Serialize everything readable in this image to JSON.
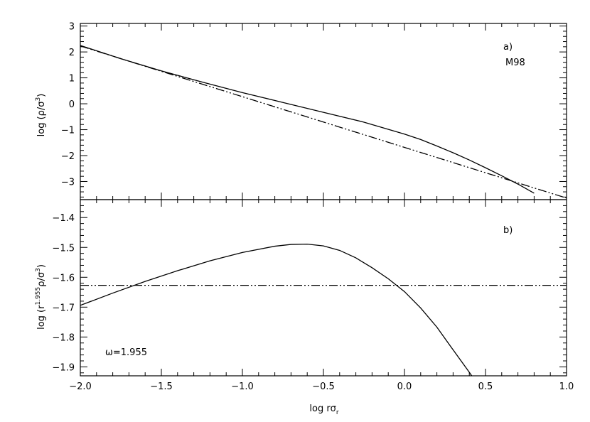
{
  "chart_data": [
    {
      "type": "line",
      "panel_label": "a)",
      "annotation": "M98",
      "ylabel": "log (ρ/σ³)",
      "ylabel_parts": {
        "pre": "log (ρ/σ",
        "sup": "3",
        "post": ")"
      },
      "xlim": [
        -2.0,
        1.0
      ],
      "ylim": [
        -3.7,
        3.1
      ],
      "y_ticks": [
        -3,
        -2,
        -1,
        0,
        1,
        2,
        3
      ],
      "y_tick_labels": [
        "−3",
        "−2",
        "−1",
        "0",
        "1",
        "2",
        "3"
      ],
      "series": [
        {
          "style": "solid",
          "x": [
            -2.0,
            -1.75,
            -1.5,
            -1.25,
            -1.0,
            -0.75,
            -0.5,
            -0.25,
            0.0,
            0.1,
            0.2,
            0.3,
            0.4,
            0.5,
            0.6,
            0.7,
            0.8
          ],
          "y": [
            2.25,
            1.74,
            1.27,
            0.84,
            0.43,
            0.05,
            -0.33,
            -0.71,
            -1.17,
            -1.38,
            -1.63,
            -1.89,
            -2.17,
            -2.47,
            -2.78,
            -3.1,
            -3.45
          ]
        },
        {
          "style": "dash-dot-dot",
          "x": [
            -2.0,
            1.0
          ],
          "y": [
            2.23,
            -3.64
          ]
        }
      ]
    },
    {
      "type": "line",
      "panel_label": "b)",
      "annotation": "ω=1.955",
      "xlabel": "log rσr",
      "xlabel_parts": {
        "pre": "log rσ",
        "sub": "r"
      },
      "ylabel": "log (r^1.955 ρ/σ³)",
      "ylabel_parts": {
        "pre": "log (r",
        "sup1": "1.955",
        "mid": "ρ/σ",
        "sup2": "3",
        "post": ")"
      },
      "xlim": [
        -2.0,
        1.0
      ],
      "ylim": [
        -1.93,
        -1.34
      ],
      "x_ticks": [
        -2.0,
        -1.5,
        -1.0,
        -0.5,
        0.0,
        0.5,
        1.0
      ],
      "x_tick_labels": [
        "−2.0",
        "−1.5",
        "−1.0",
        "−0.5",
        "0.0",
        "0.5",
        "1.0"
      ],
      "y_ticks": [
        -1.9,
        -1.8,
        -1.7,
        -1.6,
        -1.5,
        -1.4
      ],
      "y_tick_labels": [
        "−1.9",
        "−1.8",
        "−1.7",
        "−1.6",
        "−1.5",
        "−1.4"
      ],
      "series": [
        {
          "style": "solid",
          "x": [
            -2.0,
            -1.8,
            -1.6,
            -1.4,
            -1.2,
            -1.0,
            -0.8,
            -0.7,
            -0.6,
            -0.5,
            -0.4,
            -0.3,
            -0.2,
            -0.1,
            0.0,
            0.1,
            0.2,
            0.3,
            0.4,
            0.415
          ],
          "y": [
            -1.694,
            -1.653,
            -1.614,
            -1.578,
            -1.545,
            -1.517,
            -1.496,
            -1.49,
            -1.489,
            -1.495,
            -1.51,
            -1.535,
            -1.568,
            -1.605,
            -1.648,
            -1.703,
            -1.767,
            -1.843,
            -1.918,
            -1.93
          ]
        },
        {
          "style": "dash-dot-dot",
          "x": [
            -2.0,
            1.0
          ],
          "y": [
            -1.627,
            -1.627
          ]
        }
      ]
    }
  ]
}
